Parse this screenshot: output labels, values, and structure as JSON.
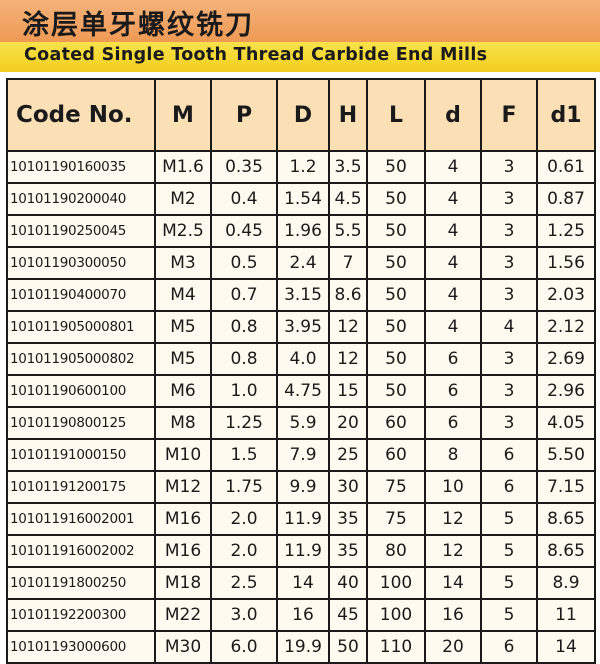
{
  "title_cn": "涂层单牙螺纹铣刀",
  "title_en": "Coated Single Tooth Thread Carbide End Mills",
  "headers": [
    "Code No.",
    "M",
    "P",
    "D",
    "H",
    "L",
    "d",
    "F",
    "d1"
  ],
  "rows": [
    [
      "10101190160035",
      "M1.6",
      "0.35",
      "1.2",
      "3.5",
      "50",
      "4",
      "3",
      "0.61"
    ],
    [
      "10101190200040",
      "M2",
      "0.4",
      "1.54",
      "4.5",
      "50",
      "4",
      "3",
      "0.87"
    ],
    [
      "10101190250045",
      "M2.5",
      "0.45",
      "1.96",
      "5.5",
      "50",
      "4",
      "3",
      "1.25"
    ],
    [
      "10101190300050",
      "M3",
      "0.5",
      "2.4",
      "7",
      "50",
      "4",
      "3",
      "1.56"
    ],
    [
      "10101190400070",
      "M4",
      "0.7",
      "3.15",
      "8.6",
      "50",
      "4",
      "3",
      "2.03"
    ],
    [
      "101011905000801",
      "M5",
      "0.8",
      "3.95",
      "12",
      "50",
      "4",
      "4",
      "2.12"
    ],
    [
      "101011905000802",
      "M5",
      "0.8",
      "4.0",
      "12",
      "50",
      "6",
      "3",
      "2.69"
    ],
    [
      "10101190600100",
      "M6",
      "1.0",
      "4.75",
      "15",
      "50",
      "6",
      "3",
      "2.96"
    ],
    [
      "10101190800125",
      "M8",
      "1.25",
      "5.9",
      "20",
      "60",
      "6",
      "3",
      "4.05"
    ],
    [
      "10101191000150",
      "M10",
      "1.5",
      "7.9",
      "25",
      "60",
      "8",
      "6",
      "5.50"
    ],
    [
      "10101191200175",
      "M12",
      "1.75",
      "9.9",
      "30",
      "75",
      "10",
      "6",
      "7.15"
    ],
    [
      "101011916002001",
      "M16",
      "2.0",
      "11.9",
      "35",
      "75",
      "12",
      "5",
      "8.65"
    ],
    [
      "101011916002002",
      "M16",
      "2.0",
      "11.9",
      "35",
      "80",
      "12",
      "5",
      "8.65"
    ],
    [
      "10101191800250",
      "M18",
      "2.5",
      "14",
      "40",
      "100",
      "14",
      "5",
      "8.9"
    ],
    [
      "10101192200300",
      "M22",
      "3.0",
      "16",
      "45",
      "100",
      "16",
      "5",
      "11"
    ],
    [
      "10101193000600",
      "M30",
      "6.0",
      "19.9",
      "50",
      "110",
      "20",
      "6",
      "14"
    ]
  ],
  "colors": {
    "banner_top": "#ef9a54",
    "banner_bottom": "#f2cf1f",
    "header_fill": "#fbe0b6",
    "cell_fill": "#fffaef",
    "border": "#1a1a1a"
  }
}
